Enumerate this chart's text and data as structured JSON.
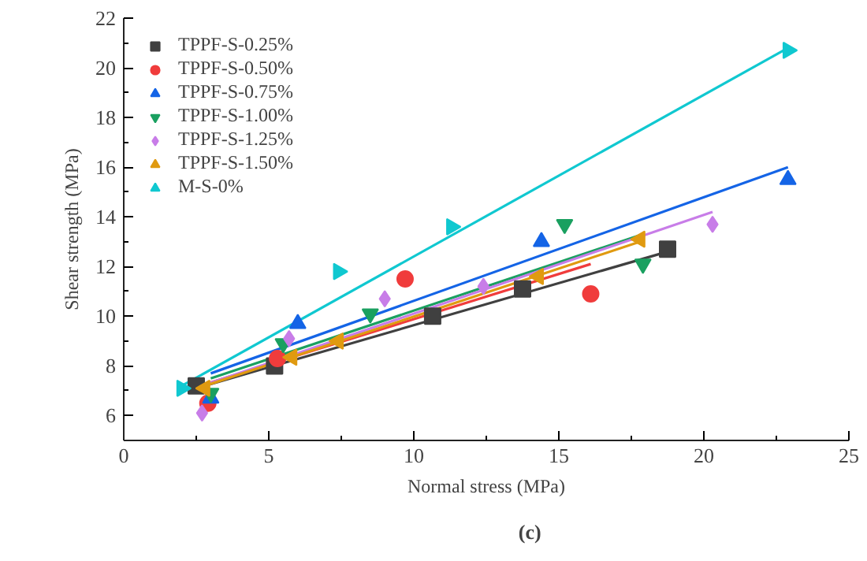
{
  "chart_data": {
    "type": "scatter",
    "xlabel": "Normal stress (MPa)",
    "ylabel": "Shear strength (MPa)",
    "xlim": [
      0,
      25
    ],
    "ylim": [
      5,
      22
    ],
    "xticks": [
      0,
      5,
      10,
      15,
      20,
      25
    ],
    "yticks": [
      6,
      8,
      10,
      12,
      14,
      16,
      18,
      20,
      22
    ],
    "grid": false,
    "legend": "top left",
    "annotations": [
      "(c)"
    ],
    "series": [
      {
        "name": "TPPF-S-0.25%",
        "color": "#404040",
        "marker": "square",
        "x": [
          2.5,
          5.2,
          10.65,
          13.75,
          18.75
        ],
        "values": [
          7.2,
          8.0,
          10.0,
          11.1,
          12.7
        ]
      },
      {
        "name": "TPPF-S-0.50%",
        "color": "#f03c3c",
        "marker": "circle",
        "x": [
          2.9,
          5.3,
          9.7,
          16.1
        ],
        "values": [
          6.5,
          8.3,
          11.5,
          10.9
        ]
      },
      {
        "name": "TPPF-S-0.75%",
        "color": "#1464e6",
        "marker": "triangle",
        "x": [
          3.0,
          6.0,
          14.4,
          22.9
        ],
        "values": [
          6.7,
          9.7,
          13.0,
          15.5
        ]
      },
      {
        "name": "TPPF-S-1.00%",
        "color": "#1aa060",
        "marker": "triangle_down",
        "x": [
          3.0,
          5.5,
          8.5,
          15.2,
          17.9
        ],
        "values": [
          6.9,
          8.9,
          10.1,
          13.7,
          12.1
        ]
      },
      {
        "name": "TPPF-S-1.25%",
        "color": "#c87de8",
        "marker": "diamond",
        "x": [
          2.7,
          5.7,
          9.0,
          12.4,
          20.3
        ],
        "values": [
          6.1,
          9.1,
          10.7,
          11.2,
          13.7
        ]
      },
      {
        "name": "TPPF-S-1.50%",
        "color": "#e09a10",
        "marker": "triangle_left",
        "x": [
          2.8,
          5.8,
          7.4,
          14.3,
          17.8
        ],
        "values": [
          7.1,
          8.35,
          9.0,
          11.6,
          13.1
        ]
      },
      {
        "name": "M-S-0%",
        "color": "#10c8d0",
        "marker": "triangle_right",
        "x": [
          2.0,
          7.4,
          11.3,
          22.9
        ],
        "values": [
          7.1,
          11.8,
          13.6,
          20.7
        ]
      },
      {
        "type": "line",
        "color": "#404040",
        "x": [
          2.5,
          18.75
        ],
        "values": [
          7.1,
          12.6
        ]
      },
      {
        "type": "line",
        "color": "#f03c3c",
        "x": [
          2.9,
          16.1
        ],
        "values": [
          7.3,
          12.1
        ]
      },
      {
        "type": "line",
        "color": "#1464e6",
        "x": [
          3.0,
          22.9
        ],
        "values": [
          7.7,
          16.0
        ]
      },
      {
        "type": "line",
        "color": "#1aa060",
        "x": [
          3.0,
          17.9
        ],
        "values": [
          7.5,
          13.3
        ]
      },
      {
        "type": "line",
        "color": "#c87de8",
        "x": [
          2.7,
          20.3
        ],
        "values": [
          7.2,
          14.2
        ]
      },
      {
        "type": "line",
        "color": "#e09a10",
        "x": [
          2.8,
          17.8
        ],
        "values": [
          7.2,
          13.0
        ]
      },
      {
        "type": "line",
        "color": "#10c8d0",
        "x": [
          2.0,
          22.9
        ],
        "values": [
          7.2,
          20.8
        ]
      }
    ]
  }
}
